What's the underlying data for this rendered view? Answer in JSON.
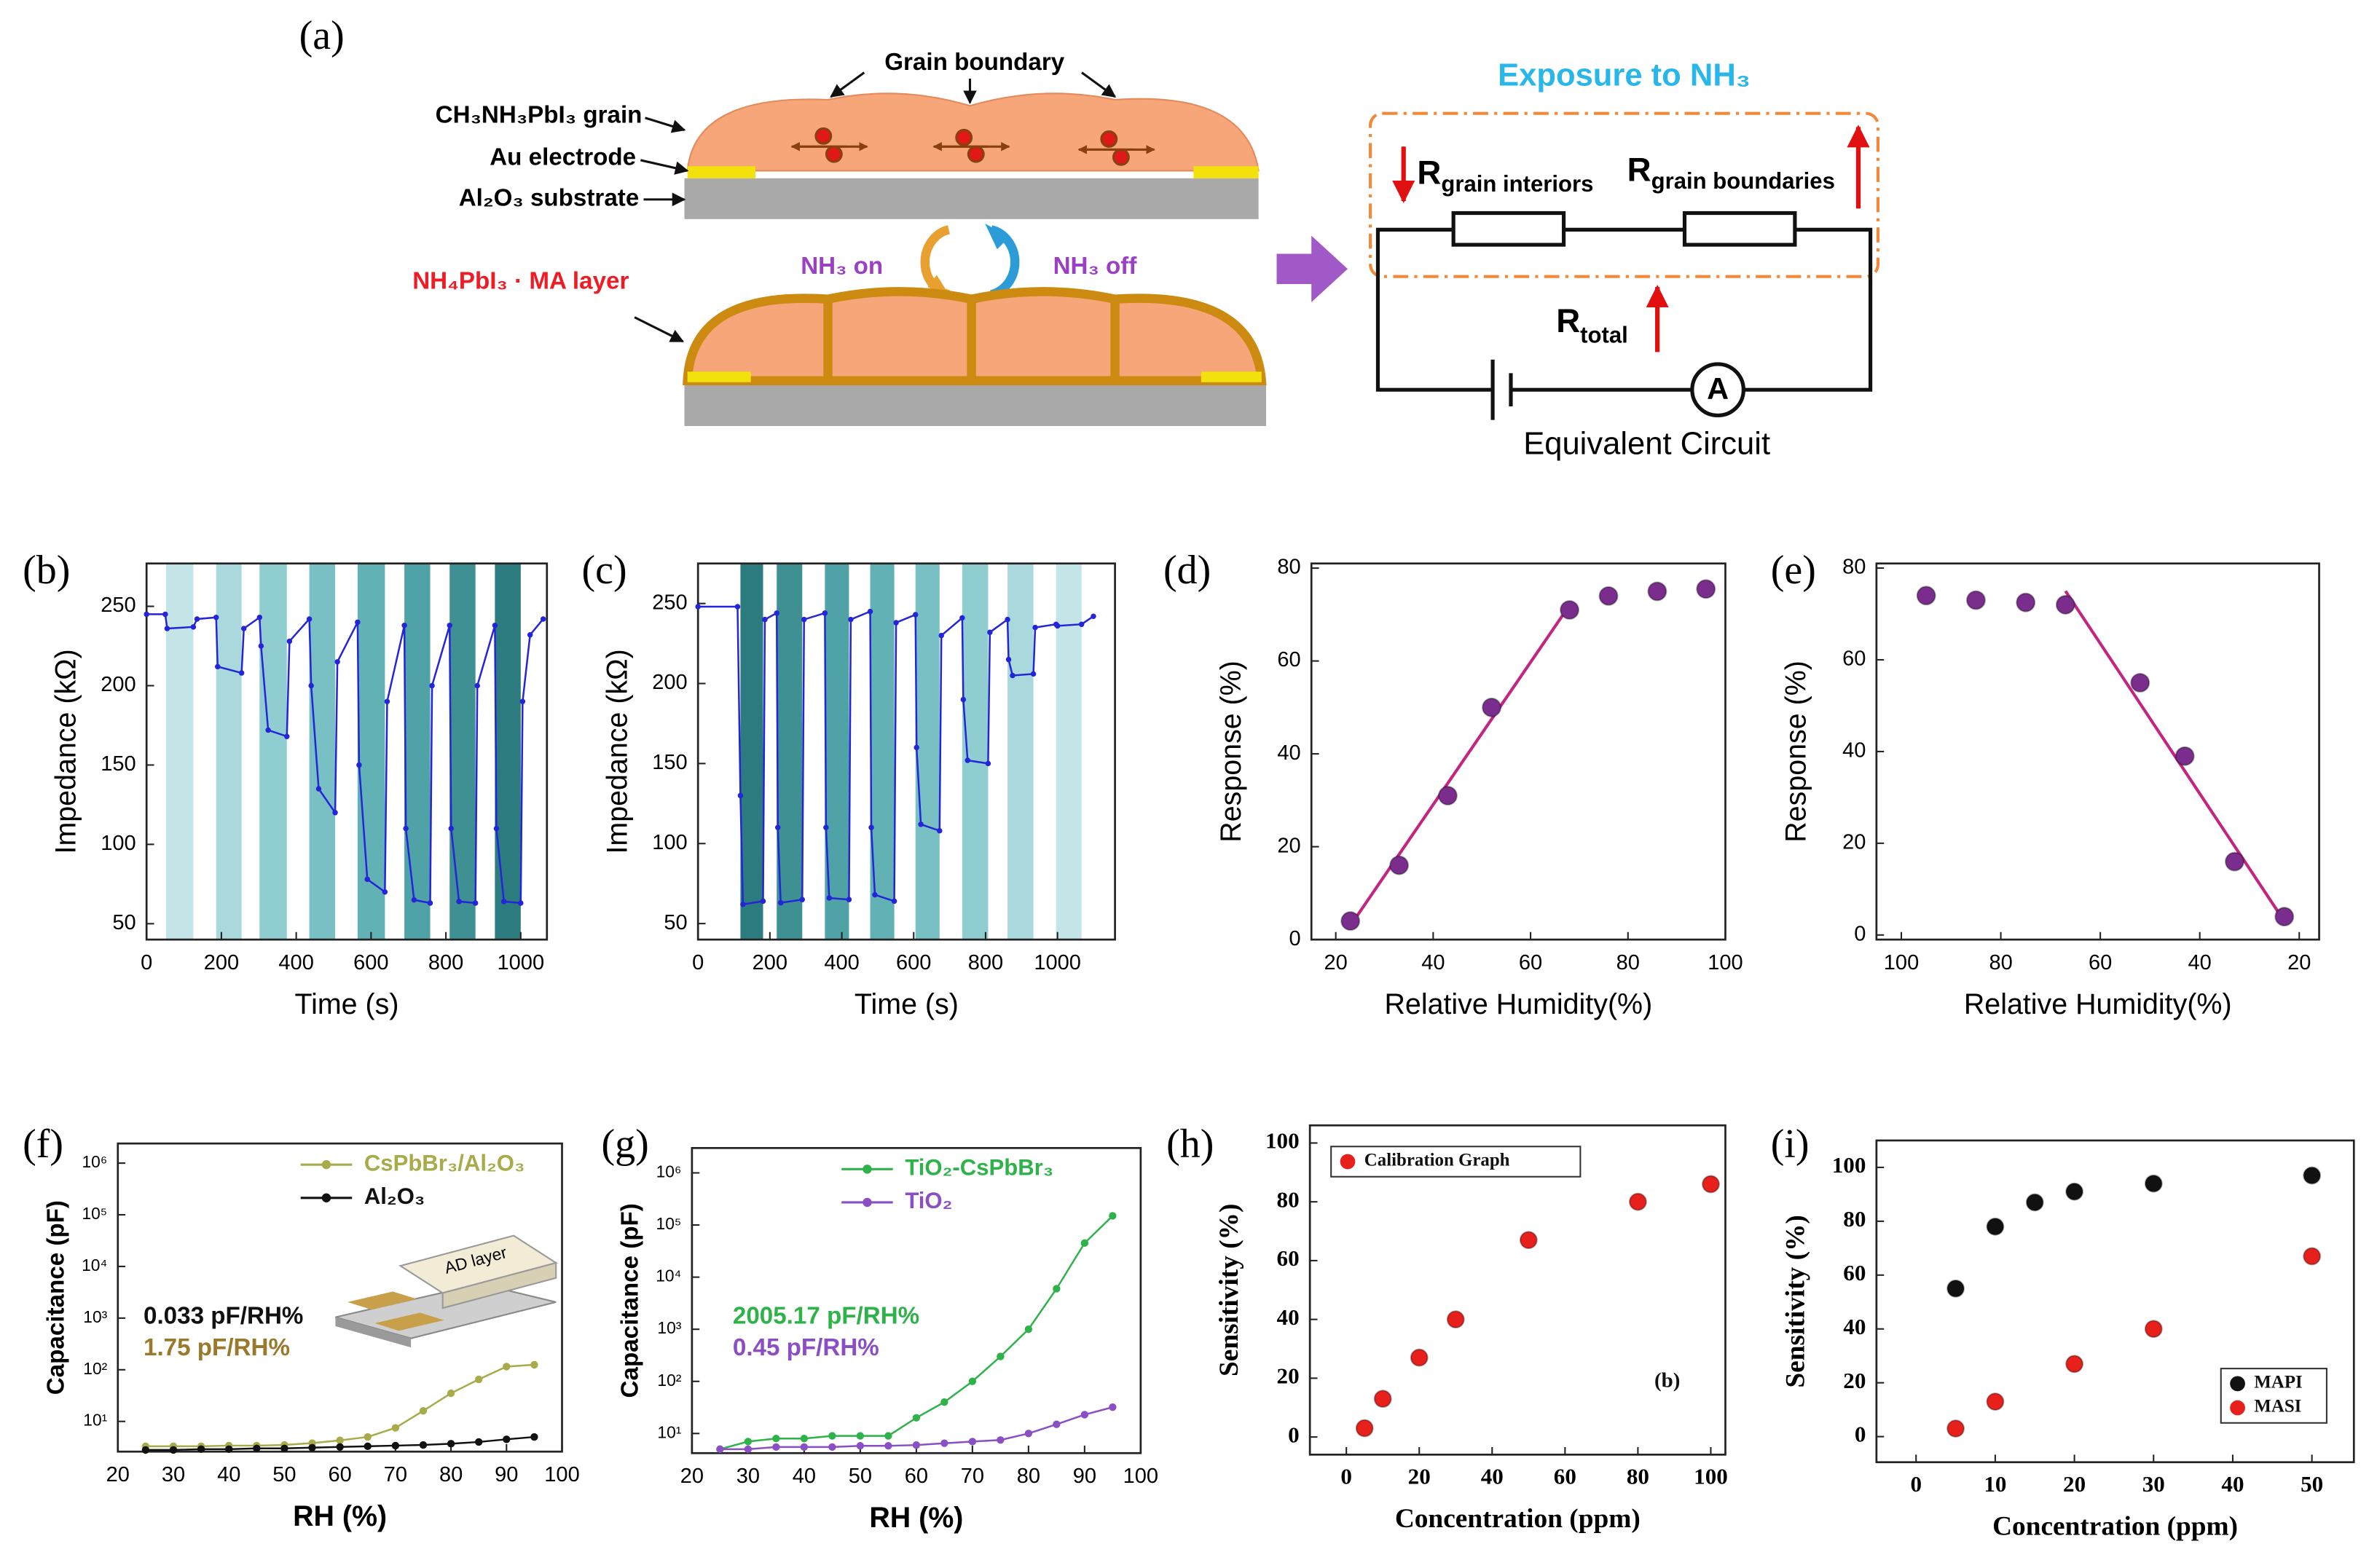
{
  "diagram": {
    "panel_label": "(a)",
    "grain_boundary": "Grain boundary",
    "grain": "CH₃NH₃PbI₃ grain",
    "electrode": "Au electrode",
    "substrate": "Al₂O₃ substrate",
    "layer": "NH₄PbI₃ · MA layer",
    "nh3_on": "NH₃ on",
    "nh3_off": "NH₃ off",
    "exposure": "Exposure to NH₃",
    "r_interiors": {
      "symbol": "R",
      "subscript": "grain interiors"
    },
    "r_boundaries": {
      "symbol": "R",
      "subscript": "grain boundaries"
    },
    "r_total": {
      "symbol": "R",
      "subscript": "total"
    },
    "ammeter": "A",
    "circuit": "Equivalent Circuit"
  },
  "chart_data": [
    {
      "type": "line",
      "panel_label": "(b)",
      "xlabel": "Time (s)",
      "ylabel": "Impedance (kΩ)",
      "xlim": [
        0,
        1070
      ],
      "ylim": [
        40,
        277
      ],
      "xticks": [
        0,
        200,
        400,
        600,
        800,
        1000
      ],
      "yticks": [
        50,
        100,
        150,
        200,
        250
      ],
      "bands": {
        "start": [
          52,
          186,
          302,
          435,
          564,
          689,
          810,
          931
        ],
        "end": [
          125,
          254,
          375,
          504,
          637,
          758,
          879,
          1000
        ],
        "colors": [
          "#c3e5e8",
          "#a9d9dc",
          "#90cdd0",
          "#78c0c3",
          "#62b2b5",
          "#4fa3a6",
          "#3e9093",
          "#2c7c7f"
        ]
      },
      "series": [
        {
          "color": "#2424d8",
          "x": [
            0,
            50,
            55,
            125,
            135,
            186,
            190,
            254,
            260,
            302,
            306,
            325,
            375,
            382,
            435,
            440,
            460,
            504,
            510,
            564,
            568,
            590,
            637,
            643,
            689,
            693,
            715,
            758,
            763,
            810,
            814,
            835,
            879,
            884,
            931,
            935,
            955,
            1000,
            1005,
            1025,
            1060
          ],
          "values": [
            245,
            245,
            236,
            237,
            242,
            243,
            212,
            208,
            236,
            243,
            225,
            172,
            168,
            228,
            242,
            200,
            135,
            120,
            215,
            240,
            150,
            78,
            70,
            190,
            238,
            110,
            65,
            63,
            200,
            238,
            110,
            64,
            63,
            200,
            238,
            110,
            64,
            63,
            190,
            232,
            242
          ]
        }
      ]
    },
    {
      "type": "line",
      "panel_label": "(c)",
      "xlabel": "Time (s)",
      "ylabel": "Impedance (kΩ)",
      "xlim": [
        0,
        1160
      ],
      "ylim": [
        40,
        275
      ],
      "xticks": [
        0,
        200,
        400,
        600,
        800,
        1000
      ],
      "yticks": [
        50,
        100,
        150,
        200,
        250
      ],
      "bands": {
        "start": [
          118,
          219,
          353,
          479,
          605,
          735,
          861,
          996
        ],
        "end": [
          181,
          290,
          420,
          546,
          672,
          807,
          933,
          1067
        ],
        "colors": [
          "#2c7c7f",
          "#3e9093",
          "#4fa3a6",
          "#62b2b5",
          "#78c0c3",
          "#90cdd0",
          "#a9d9dc",
          "#c3e5e8"
        ]
      },
      "series": [
        {
          "color": "#2424d8",
          "x": [
            0,
            110,
            118,
            125,
            181,
            186,
            219,
            222,
            230,
            290,
            295,
            353,
            356,
            365,
            420,
            425,
            479,
            482,
            492,
            546,
            551,
            605,
            608,
            620,
            672,
            677,
            735,
            738,
            750,
            807,
            812,
            861,
            864,
            875,
            933,
            938,
            996,
            1000,
            1067,
            1100
          ],
          "values": [
            248,
            248,
            130,
            62,
            64,
            240,
            244,
            110,
            63,
            65,
            240,
            244,
            110,
            66,
            65,
            240,
            245,
            110,
            68,
            64,
            238,
            243,
            160,
            112,
            108,
            230,
            241,
            190,
            152,
            150,
            232,
            240,
            215,
            205,
            206,
            235,
            237,
            236,
            237,
            242
          ]
        }
      ]
    },
    {
      "type": "scatter",
      "panel_label": "(d)",
      "xlabel": "Relative Humidity(%)",
      "ylabel": "Response (%)",
      "xlim": [
        15,
        100
      ],
      "ylim": [
        0,
        81
      ],
      "xticks": [
        20,
        40,
        60,
        80,
        100
      ],
      "yticks": [
        0,
        20,
        40,
        60,
        80
      ],
      "fit": {
        "color": "#c2267e",
        "x": [
          23,
          68
        ],
        "values": [
          3,
          72
        ]
      },
      "series": [
        {
          "color": "#7b2d8e",
          "x": [
            23,
            33,
            43,
            52,
            68,
            76,
            86,
            96
          ],
          "values": [
            4,
            16,
            31,
            50,
            71,
            74,
            75,
            75.5
          ]
        }
      ]
    },
    {
      "type": "scatter",
      "panel_label": "(e)",
      "xlabel": "Relative Humidity(%)",
      "ylabel": "Response (%)",
      "xlim": [
        105,
        16
      ],
      "ylim": [
        -1,
        81
      ],
      "xticks": [
        100,
        80,
        60,
        40,
        20
      ],
      "yticks": [
        0,
        20,
        40,
        60,
        80
      ],
      "fit": {
        "color": "#c2267e",
        "x": [
          67,
          23
        ],
        "values": [
          75,
          3
        ]
      },
      "series": [
        {
          "color": "#7b2d8e",
          "x": [
            95,
            85,
            75,
            67,
            52,
            43,
            33,
            23
          ],
          "values": [
            74,
            73,
            72.5,
            72,
            55,
            39,
            16,
            4
          ]
        }
      ]
    },
    {
      "type": "line",
      "panel_label": "(f)",
      "xlabel": "RH (%)",
      "ylabel": "Capacitance (pF)",
      "log_y": true,
      "xlim": [
        20,
        100
      ],
      "ylim": [
        2.6,
        2400000
      ],
      "xticks": [
        20,
        30,
        40,
        50,
        60,
        70,
        80,
        90,
        100
      ],
      "yticks": [
        {
          "value": 10,
          "label": "10¹"
        },
        {
          "value": 100,
          "label": "10²"
        },
        {
          "value": 1000,
          "label": "10³"
        },
        {
          "value": 10000,
          "label": "10⁴"
        },
        {
          "value": 100000,
          "label": "10⁵"
        },
        {
          "value": 1000000,
          "label": "10⁶"
        }
      ],
      "legend": "upper right",
      "inset_text": "AD layer",
      "annotations": [
        {
          "text": "0.033 pF/RH%",
          "color": "#111111"
        },
        {
          "text": "1.75 pF/RH%",
          "color": "#9a7a2a"
        }
      ],
      "series": [
        {
          "name": "CsPbBr₃/Al₂O₃",
          "color": "#a8ab4a",
          "x": [
            25,
            30,
            35,
            40,
            45,
            50,
            55,
            60,
            65,
            70,
            75,
            80,
            85,
            90,
            95
          ],
          "values": [
            3.3,
            3.3,
            3.3,
            3.4,
            3.4,
            3.5,
            3.8,
            4.3,
            5,
            7.5,
            16,
            35,
            65,
            115,
            125
          ]
        },
        {
          "name": "Al₂O₃",
          "color": "#111111",
          "x": [
            25,
            30,
            35,
            40,
            45,
            50,
            55,
            60,
            65,
            70,
            75,
            80,
            85,
            90,
            95
          ],
          "values": [
            2.8,
            2.8,
            2.9,
            2.9,
            3,
            3,
            3.1,
            3.2,
            3.3,
            3.4,
            3.5,
            3.7,
            4,
            4.5,
            5
          ]
        }
      ]
    },
    {
      "type": "line",
      "panel_label": "(g)",
      "xlabel": "RH (%)",
      "ylabel": "Capacitance (pF)",
      "log_y": true,
      "xlim": [
        20,
        100
      ],
      "ylim": [
        4.2,
        3000000
      ],
      "xticks": [
        20,
        30,
        40,
        50,
        60,
        70,
        80,
        90,
        100
      ],
      "yticks": [
        {
          "value": 10,
          "label": "10¹"
        },
        {
          "value": 100,
          "label": "10²"
        },
        {
          "value": 1000,
          "label": "10³"
        },
        {
          "value": 10000,
          "label": "10⁴"
        },
        {
          "value": 100000,
          "label": "10⁵"
        },
        {
          "value": 1000000,
          "label": "10⁶"
        }
      ],
      "legend": "upper right",
      "annotations": [
        {
          "text": "2005.17 pF/RH%",
          "color": "#2fb24a"
        },
        {
          "text": "0.45 pF/RH%",
          "color": "#8a4fc4"
        }
      ],
      "series": [
        {
          "name": "TiO₂-CsPbBr₃",
          "color": "#2fb24a",
          "x": [
            25,
            30,
            35,
            40,
            45,
            50,
            55,
            60,
            65,
            70,
            75,
            80,
            85,
            90,
            95
          ],
          "values": [
            5,
            7,
            8,
            8,
            9,
            9,
            9,
            20,
            40,
            100,
            300,
            1000,
            6000,
            45000,
            150000
          ]
        },
        {
          "name": "TiO₂",
          "color": "#8a4fc4",
          "x": [
            25,
            30,
            35,
            40,
            45,
            50,
            55,
            60,
            65,
            70,
            75,
            80,
            85,
            90,
            95
          ],
          "values": [
            5,
            5,
            5.5,
            5.5,
            5.5,
            5.8,
            5.8,
            6,
            6.5,
            7,
            7.5,
            10,
            15,
            23,
            32
          ]
        }
      ]
    },
    {
      "type": "scatter",
      "panel_label": "(h)",
      "xlabel": "Concentration (ppm)",
      "ylabel": "Sensitivity (%)",
      "xlim": [
        -10,
        104
      ],
      "ylim": [
        -6,
        106
      ],
      "xticks": [
        0,
        20,
        40,
        60,
        80,
        100
      ],
      "yticks": [
        0,
        20,
        40,
        60,
        80,
        100
      ],
      "legend": "upper left",
      "annotations": [
        {
          "text": "(b)",
          "color": "#111111"
        }
      ],
      "series": [
        {
          "name": "Calibration Graph",
          "color": "#e8201c",
          "x": [
            5,
            10,
            20,
            30,
            50,
            80,
            100
          ],
          "values": [
            3,
            13,
            27,
            40,
            67,
            80,
            86
          ]
        }
      ]
    },
    {
      "type": "scatter",
      "panel_label": "(i)",
      "xlabel": "Concentration (ppm)",
      "ylabel": "Sensitivity (%)",
      "xlim": [
        -5,
        55.3
      ],
      "ylim": [
        -9.5,
        110
      ],
      "xticks": [
        0,
        10,
        20,
        30,
        40,
        50
      ],
      "yticks": [
        0,
        20,
        40,
        60,
        80,
        100
      ],
      "legend": "lower right",
      "series": [
        {
          "name": "MAPI",
          "color": "#111111",
          "x": [
            5,
            10,
            15,
            20,
            30,
            50
          ],
          "values": [
            55,
            78,
            87,
            91,
            94,
            97
          ]
        },
        {
          "name": "MASI",
          "color": "#e8201c",
          "x": [
            5,
            10,
            20,
            30,
            50
          ],
          "values": [
            3,
            13,
            27,
            40,
            67
          ]
        }
      ]
    }
  ]
}
